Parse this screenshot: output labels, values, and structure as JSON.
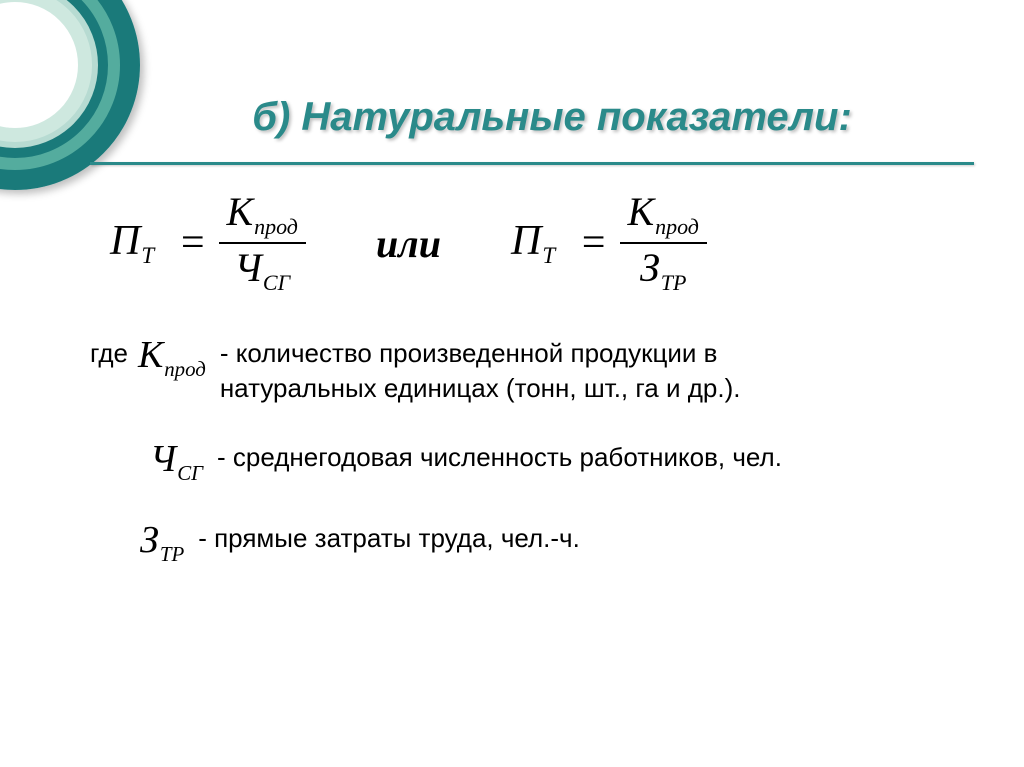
{
  "colors": {
    "accent": "#2a8a8a",
    "ring_outer": "#1a7a7a",
    "ring_mid": "#5fb5a5",
    "ring_inner": "#c9e5db",
    "text": "#000000",
    "background": "#ffffff"
  },
  "typography": {
    "title_font": "Verdana",
    "title_fontsize_pt": 30,
    "body_font": "Verdana",
    "body_fontsize_pt": 20,
    "math_font": "Times New Roman",
    "math_fontsize_pt": 32
  },
  "title": "б) Натуральные показатели:",
  "connector": "или",
  "formulas": {
    "left": {
      "lhs_base": "П",
      "lhs_sub": "Т",
      "num_base": "К",
      "num_sub": "прод",
      "den_base": "Ч",
      "den_sub": "СГ"
    },
    "right": {
      "lhs_base": "П",
      "lhs_sub": "Т",
      "num_base": "К",
      "num_sub": "прод",
      "den_base": "З",
      "den_sub": "ТР"
    }
  },
  "definitions": {
    "lead_word": "где",
    "items": [
      {
        "sym_base": "К",
        "sym_sub": "прод",
        "text_line1": "- количество произведенной продукции в",
        "text_line2": "натуральных единицах (тонн, шт., га  и др.)."
      },
      {
        "sym_base": "Ч",
        "sym_sub": "СГ",
        "text_line1": "- среднегодовая численность работников, чел.",
        "text_line2": ""
      },
      {
        "sym_base": "З",
        "sym_sub": "ТР",
        "text_line1": "- прямые затраты труда, чел.-ч.",
        "text_line2": ""
      }
    ]
  }
}
